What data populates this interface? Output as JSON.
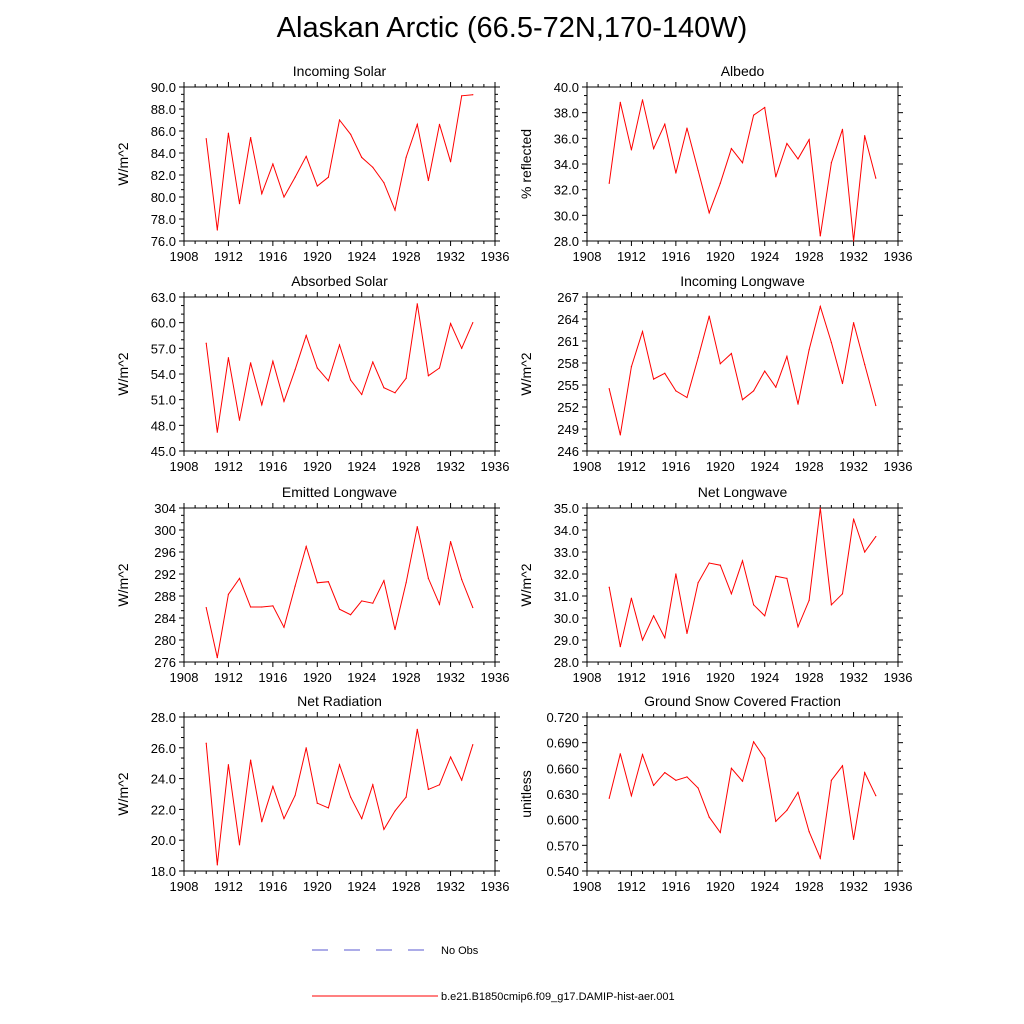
{
  "figure": {
    "title": "Alaskan Arctic (66.5-72N,170-140W)"
  },
  "legend": {
    "entries": [
      {
        "label": "No Obs",
        "color": "#5a5ad0",
        "style": "dashed"
      },
      {
        "label": "b.e21.B1850cmip6.f09_g17.DAMIP-hist-aer.001",
        "color": "#ff0000",
        "style": "solid"
      }
    ]
  },
  "chart_data": [
    {
      "type": "line",
      "title": "Incoming Solar",
      "xlabel": "",
      "ylabel": "W/m^2",
      "xlim": [
        1908,
        1936
      ],
      "ylim": [
        76,
        90
      ],
      "xticks": [
        "1908",
        "1912",
        "1916",
        "1920",
        "1924",
        "1928",
        "1932",
        "1936"
      ],
      "yticks": [
        "76.0",
        "78.0",
        "80.0",
        "82.0",
        "84.0",
        "86.0",
        "88.0",
        "90.0"
      ],
      "series": [
        {
          "color": "#ff0000",
          "x": [
            1910,
            1911,
            1912,
            1913,
            1914,
            1915,
            1916,
            1917,
            1918,
            1919,
            1920,
            1921,
            1922,
            1923,
            1924,
            1925,
            1926,
            1927,
            1928,
            1929,
            1930,
            1931,
            1932,
            1933,
            1934
          ],
          "y": [
            85.3,
            77.0,
            85.8,
            79.4,
            85.4,
            80.3,
            83.0,
            80.0,
            81.8,
            83.7,
            81.0,
            81.8,
            87.0,
            85.7,
            83.6,
            82.7,
            81.3,
            78.8,
            83.6,
            86.6,
            81.5,
            86.6,
            83.2,
            89.2,
            89.3
          ]
        }
      ]
    },
    {
      "type": "line",
      "title": "Albedo",
      "xlabel": "",
      "ylabel": "% reflected",
      "xlim": [
        1908,
        1936
      ],
      "ylim": [
        28,
        40
      ],
      "xticks": [
        "1908",
        "1912",
        "1916",
        "1920",
        "1924",
        "1928",
        "1932",
        "1936"
      ],
      "yticks": [
        "28.0",
        "30.0",
        "32.0",
        "34.0",
        "36.0",
        "38.0",
        "40.0"
      ],
      "series": [
        {
          "color": "#ff0000",
          "x": [
            1910,
            1911,
            1912,
            1913,
            1914,
            1915,
            1916,
            1917,
            1918,
            1919,
            1920,
            1921,
            1922,
            1923,
            1924,
            1925,
            1926,
            1927,
            1928,
            1929,
            1930,
            1931,
            1932,
            1933,
            1934
          ],
          "y": [
            32.5,
            38.8,
            35.1,
            39.0,
            35.2,
            37.1,
            33.3,
            36.8,
            33.5,
            30.2,
            32.5,
            35.2,
            34.1,
            37.8,
            38.4,
            33.0,
            35.6,
            34.4,
            35.9,
            28.4,
            34.1,
            36.7,
            28.0,
            36.2,
            32.9
          ]
        }
      ]
    },
    {
      "type": "line",
      "title": "Absorbed Solar",
      "xlabel": "",
      "ylabel": "W/m^2",
      "xlim": [
        1908,
        1936
      ],
      "ylim": [
        45,
        63
      ],
      "xticks": [
        "1908",
        "1912",
        "1916",
        "1920",
        "1924",
        "1928",
        "1932",
        "1936"
      ],
      "yticks": [
        "45.0",
        "48.0",
        "51.0",
        "54.0",
        "57.0",
        "60.0",
        "63.0"
      ],
      "series": [
        {
          "color": "#ff0000",
          "x": [
            1910,
            1911,
            1912,
            1913,
            1914,
            1915,
            1916,
            1917,
            1918,
            1919,
            1920,
            1921,
            1922,
            1923,
            1924,
            1925,
            1926,
            1927,
            1928,
            1929,
            1930,
            1931,
            1932,
            1933,
            1934
          ],
          "y": [
            57.6,
            47.2,
            55.9,
            48.6,
            55.3,
            50.4,
            55.5,
            50.8,
            54.5,
            58.5,
            54.7,
            53.2,
            57.4,
            53.3,
            51.6,
            55.4,
            52.4,
            51.8,
            53.5,
            62.2,
            53.8,
            54.7,
            59.9,
            57.0,
            60.0
          ]
        }
      ]
    },
    {
      "type": "line",
      "title": "Incoming Longwave",
      "xlabel": "",
      "ylabel": "W/m^2",
      "xlim": [
        1908,
        1936
      ],
      "ylim": [
        246,
        267
      ],
      "xticks": [
        "1908",
        "1912",
        "1916",
        "1920",
        "1924",
        "1928",
        "1932",
        "1936"
      ],
      "yticks": [
        "246",
        "249",
        "252",
        "255",
        "258",
        "261",
        "264",
        "267"
      ],
      "series": [
        {
          "color": "#ff0000",
          "x": [
            1910,
            1911,
            1912,
            1913,
            1914,
            1915,
            1916,
            1917,
            1918,
            1919,
            1920,
            1921,
            1922,
            1923,
            1924,
            1925,
            1926,
            1927,
            1928,
            1929,
            1930,
            1931,
            1932,
            1933,
            1934
          ],
          "y": [
            254.5,
            248.2,
            257.5,
            262.3,
            255.8,
            256.6,
            254.2,
            253.3,
            258.7,
            264.4,
            257.9,
            259.3,
            253.0,
            254.2,
            256.9,
            254.7,
            258.9,
            252.4,
            259.8,
            265.7,
            260.8,
            255.2,
            263.5,
            257.8,
            252.2
          ]
        }
      ]
    },
    {
      "type": "line",
      "title": "Emitted Longwave",
      "xlabel": "",
      "ylabel": "W/m^2",
      "xlim": [
        1908,
        1936
      ],
      "ylim": [
        276,
        304
      ],
      "xticks": [
        "1908",
        "1912",
        "1916",
        "1920",
        "1924",
        "1928",
        "1932",
        "1936"
      ],
      "yticks": [
        "276",
        "280",
        "284",
        "288",
        "292",
        "296",
        "300",
        "304"
      ],
      "series": [
        {
          "color": "#ff0000",
          "x": [
            1910,
            1911,
            1912,
            1913,
            1914,
            1915,
            1916,
            1917,
            1918,
            1919,
            1920,
            1921,
            1922,
            1923,
            1924,
            1925,
            1926,
            1927,
            1928,
            1929,
            1930,
            1931,
            1932,
            1933,
            1934
          ],
          "y": [
            285.9,
            276.8,
            288.3,
            291.2,
            286.0,
            286.0,
            286.2,
            282.3,
            289.8,
            297.0,
            290.4,
            290.6,
            285.6,
            284.6,
            287.1,
            286.7,
            290.8,
            281.9,
            290.4,
            300.6,
            291.2,
            286.5,
            297.9,
            291.0,
            285.9
          ]
        }
      ]
    },
    {
      "type": "line",
      "title": "Net Longwave",
      "xlabel": "",
      "ylabel": "W/m^2",
      "xlim": [
        1908,
        1936
      ],
      "ylim": [
        28,
        35
      ],
      "xticks": [
        "1908",
        "1912",
        "1916",
        "1920",
        "1924",
        "1928",
        "1932",
        "1936"
      ],
      "yticks": [
        "28.0",
        "29.0",
        "30.0",
        "31.0",
        "32.0",
        "33.0",
        "34.0",
        "35.0"
      ],
      "series": [
        {
          "color": "#ff0000",
          "x": [
            1910,
            1911,
            1912,
            1913,
            1914,
            1915,
            1916,
            1917,
            1918,
            1919,
            1920,
            1921,
            1922,
            1923,
            1924,
            1925,
            1926,
            1927,
            1928,
            1929,
            1930,
            1931,
            1932,
            1933,
            1934
          ],
          "y": [
            31.4,
            28.7,
            30.9,
            29.0,
            30.1,
            29.1,
            32.0,
            29.3,
            31.6,
            32.5,
            32.4,
            31.1,
            32.6,
            30.6,
            30.1,
            31.9,
            31.8,
            29.6,
            30.8,
            35.0,
            30.6,
            31.1,
            34.5,
            33.0,
            33.7
          ]
        }
      ]
    },
    {
      "type": "line",
      "title": "Net Radiation",
      "xlabel": "",
      "ylabel": "W/m^2",
      "xlim": [
        1908,
        1936
      ],
      "ylim": [
        18,
        28
      ],
      "xticks": [
        "1908",
        "1912",
        "1916",
        "1920",
        "1924",
        "1928",
        "1932",
        "1936"
      ],
      "yticks": [
        "18.0",
        "20.0",
        "22.0",
        "24.0",
        "26.0",
        "28.0"
      ],
      "series": [
        {
          "color": "#ff0000",
          "x": [
            1910,
            1911,
            1912,
            1913,
            1914,
            1915,
            1916,
            1917,
            1918,
            1919,
            1920,
            1921,
            1922,
            1923,
            1924,
            1925,
            1926,
            1927,
            1928,
            1929,
            1930,
            1931,
            1932,
            1933,
            1934
          ],
          "y": [
            26.3,
            18.4,
            24.9,
            19.7,
            25.2,
            21.2,
            23.5,
            21.4,
            22.9,
            26.0,
            22.4,
            22.1,
            24.9,
            22.8,
            21.4,
            23.6,
            20.7,
            21.9,
            22.8,
            27.2,
            23.3,
            23.6,
            25.4,
            23.9,
            26.2
          ]
        }
      ]
    },
    {
      "type": "line",
      "title": "Ground Snow Covered Fraction",
      "xlabel": "",
      "ylabel": "unitless",
      "xlim": [
        1908,
        1936
      ],
      "ylim": [
        0.54,
        0.72
      ],
      "xticks": [
        "1908",
        "1912",
        "1916",
        "1920",
        "1924",
        "1928",
        "1932",
        "1936"
      ],
      "yticks": [
        "0.540",
        "0.570",
        "0.600",
        "0.630",
        "0.660",
        "0.690",
        "0.720"
      ],
      "series": [
        {
          "color": "#ff0000",
          "x": [
            1910,
            1911,
            1912,
            1913,
            1914,
            1915,
            1916,
            1917,
            1918,
            1919,
            1920,
            1921,
            1922,
            1923,
            1924,
            1925,
            1926,
            1927,
            1928,
            1929,
            1930,
            1931,
            1932,
            1933,
            1934
          ],
          "y": [
            0.625,
            0.677,
            0.628,
            0.676,
            0.64,
            0.655,
            0.646,
            0.65,
            0.637,
            0.603,
            0.585,
            0.66,
            0.645,
            0.691,
            0.672,
            0.598,
            0.611,
            0.632,
            0.586,
            0.555,
            0.646,
            0.663,
            0.577,
            0.655,
            0.628
          ]
        }
      ]
    }
  ]
}
